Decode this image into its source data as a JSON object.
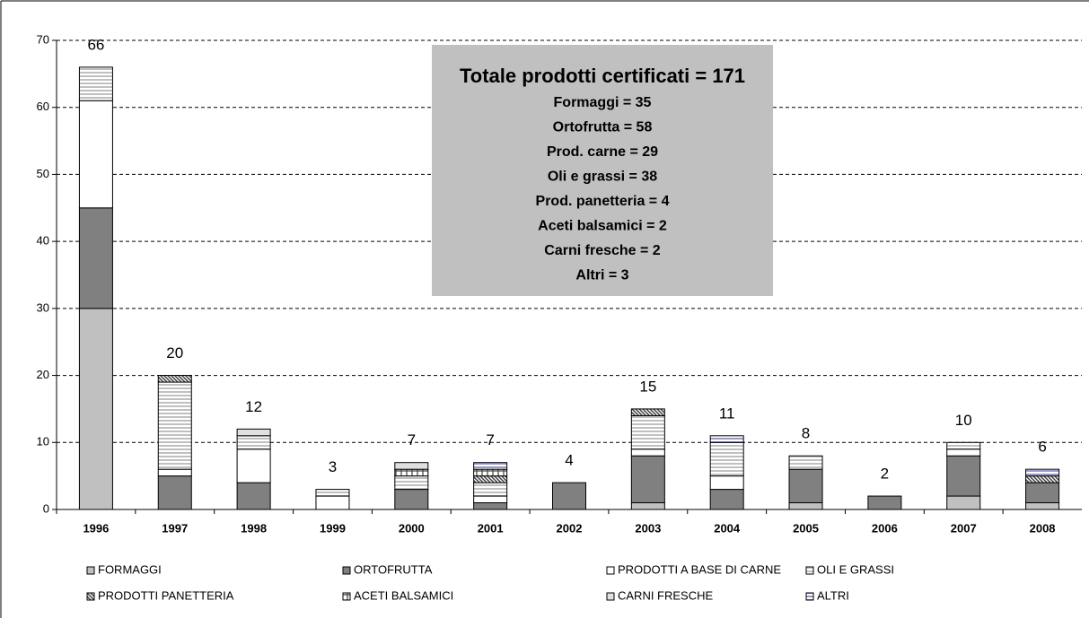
{
  "chart_data": {
    "type": "stacked-bar",
    "categories": [
      "1996",
      "1997",
      "1998",
      "1999",
      "2000",
      "2001",
      "2002",
      "2003",
      "2004",
      "2005",
      "2006",
      "2007",
      "2008"
    ],
    "series": [
      {
        "name": "FORMAGGI",
        "color": "#c0c0c0",
        "pattern": "solid",
        "values": [
          30,
          0,
          0,
          0,
          0,
          0,
          0,
          1,
          0,
          1,
          0,
          2,
          1
        ]
      },
      {
        "name": "ORTOFRUTTA",
        "color": "#808080",
        "pattern": "solid",
        "values": [
          15,
          5,
          4,
          0,
          3,
          1,
          4,
          7,
          3,
          5,
          2,
          6,
          3
        ]
      },
      {
        "name": "PRODOTTI A BASE DI CARNE",
        "color": "#ffffff",
        "pattern": "solid",
        "values": [
          16,
          1,
          5,
          2,
          0,
          1,
          0,
          1,
          2,
          0,
          0,
          1,
          0
        ]
      },
      {
        "name": "OLI E GRASSI",
        "color": "#c0c0c0",
        "pattern": "horizontal",
        "values": [
          5,
          13,
          2,
          1,
          2,
          2,
          0,
          5,
          5,
          2,
          0,
          1,
          0
        ]
      },
      {
        "name": "PRODOTTI PANETTERIA",
        "color": "#404040",
        "pattern": "diagonal",
        "values": [
          0,
          1,
          0,
          0,
          0,
          1,
          0,
          1,
          0,
          0,
          0,
          0,
          1
        ]
      },
      {
        "name": "ACETI BALSAMICI",
        "color": "#404040",
        "pattern": "grid",
        "values": [
          0,
          0,
          0,
          0,
          1,
          1,
          0,
          0,
          0,
          0,
          0,
          0,
          0
        ]
      },
      {
        "name": "CARNI FRESCHE",
        "color": "#e0e0e0",
        "pattern": "solid",
        "values": [
          0,
          0,
          1,
          0,
          1,
          0,
          0,
          0,
          0,
          0,
          0,
          0,
          0
        ]
      },
      {
        "name": "ALTRI",
        "color": "#9999cc",
        "pattern": "horizontal",
        "values": [
          0,
          0,
          0,
          0,
          0,
          1,
          0,
          0,
          1,
          0,
          0,
          0,
          1
        ]
      }
    ],
    "totals": [
      66,
      20,
      12,
      3,
      7,
      7,
      4,
      15,
      11,
      8,
      2,
      10,
      6
    ],
    "ylim": [
      0,
      70
    ],
    "yticks": [
      0,
      10,
      20,
      30,
      40,
      50,
      60,
      70
    ],
    "grid": true,
    "annotations": [
      "Totale prodotti certificati = 171",
      "Formaggi = 35",
      "Ortofrutta = 58",
      "Prod. carne = 29",
      "Oli e grassi = 38",
      "Prod. panetteria = 4",
      "Aceti balsamici = 2",
      "Carni fresche = 2",
      "Altri = 3"
    ]
  }
}
